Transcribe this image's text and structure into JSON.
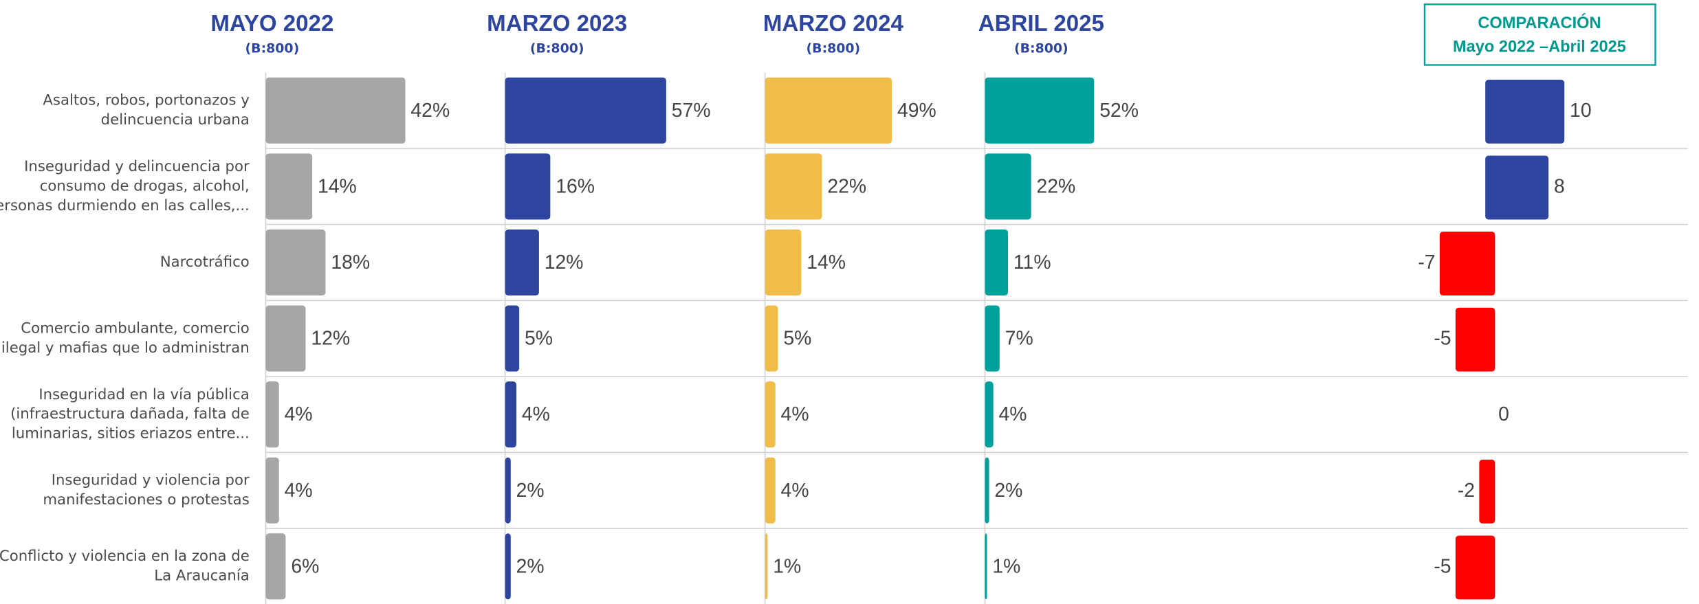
{
  "chart_data": {
    "type": "bar",
    "categories": [
      [
        "Asaltos, robos, portonazos y",
        "delincuencia urbana"
      ],
      [
        "Inseguridad y delincuencia por",
        "consumo de drogas, alcohol,",
        "personas durmiendo en las calles,..."
      ],
      [
        "Narcotráfico"
      ],
      [
        "Comercio ambulante, comercio",
        "ilegal y mafias que lo administran"
      ],
      [
        "Inseguridad en la vía pública",
        "(infraestructura dañada, falta de",
        "luminarias, sitios eriazos entre..."
      ],
      [
        "Inseguridad y violencia por",
        "manifestaciones o protestas"
      ],
      [
        "Conflicto y violencia en la zona de",
        "La Araucanía"
      ]
    ],
    "series": [
      {
        "name": "MAYO 2022",
        "base": "(B:800)",
        "color": "#a6a6a6",
        "values": [
          42,
          14,
          18,
          12,
          4,
          4,
          6
        ],
        "value_labels": [
          "42%",
          "14%",
          "18%",
          "12%",
          "4%",
          "4%",
          "6%"
        ]
      },
      {
        "name": "MARZO 2023",
        "base": "(B:800)",
        "color": "#2e45a0",
        "values": [
          57,
          16,
          12,
          5,
          4,
          2,
          2
        ],
        "value_labels": [
          "57%",
          "16%",
          "12%",
          "5%",
          "4%",
          "2%",
          "2%"
        ]
      },
      {
        "name": "MARZO 2024",
        "base": "(B:800)",
        "color": "#f0bd48",
        "values": [
          49,
          22,
          14,
          5,
          4,
          4,
          1
        ],
        "value_labels": [
          "49%",
          "22%",
          "14%",
          "5%",
          "4%",
          "4%",
          "1%"
        ]
      },
      {
        "name": "ABRIL 2025",
        "base": "(B:800)",
        "color": "#00a09d",
        "values": [
          52,
          22,
          11,
          7,
          4,
          2,
          1
        ],
        "value_labels": [
          "52%",
          "22%",
          "11%",
          "7%",
          "4%",
          "2%",
          "1%"
        ]
      }
    ],
    "comparison": {
      "title": [
        "COMPARACIÓN",
        "Mayo 2022 –Abril 2025"
      ],
      "values": [
        10,
        8,
        -7,
        -5,
        0,
        -2,
        -5
      ],
      "positive_color": "#2e45a0",
      "negative_color": "#ff0000"
    }
  }
}
